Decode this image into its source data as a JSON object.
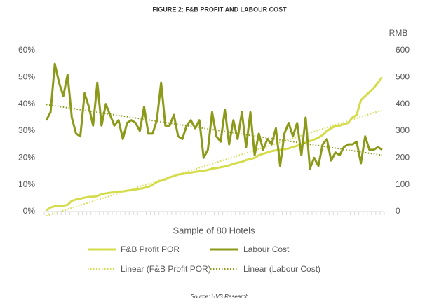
{
  "chart_data": {
    "type": "line",
    "title": "FIGURE 2: F&B PROFIT AND LABOUR COST",
    "x_label": "Sample of 80 Hotels",
    "y2_label": "RMB",
    "source": "Source: HVS Research",
    "ylim": [
      0,
      0.6
    ],
    "yticks": [
      {
        "value": 0,
        "label": "0%"
      },
      {
        "value": 0.1,
        "label": "10%"
      },
      {
        "value": 0.2,
        "label": "20%"
      },
      {
        "value": 0.3,
        "label": "30%"
      },
      {
        "value": 0.4,
        "label": "40%"
      },
      {
        "value": 0.5,
        "label": "50%"
      },
      {
        "value": 0.6,
        "label": "60%"
      }
    ],
    "y2lim": [
      0,
      600
    ],
    "y2ticks": [
      0,
      100,
      200,
      300,
      400,
      500,
      600
    ],
    "series": [
      {
        "name": "F&B Profit POR",
        "color": "#d4dc4a",
        "axis": "y2",
        "trendline": {
          "type": "linear",
          "name": "Linear (F&B Profit POR)"
        },
        "values": [
          5,
          15,
          20,
          22,
          22,
          25,
          40,
          45,
          48,
          52,
          55,
          55,
          58,
          65,
          68,
          70,
          72,
          75,
          75,
          78,
          80,
          82,
          85,
          88,
          92,
          100,
          110,
          115,
          120,
          128,
          132,
          138,
          140,
          142,
          145,
          148,
          150,
          152,
          155,
          160,
          162,
          165,
          168,
          172,
          178,
          182,
          185,
          192,
          195,
          200,
          210,
          215,
          220,
          225,
          228,
          230,
          232,
          235,
          240,
          245,
          250,
          258,
          262,
          268,
          275,
          285,
          300,
          310,
          318,
          320,
          325,
          330,
          350,
          360,
          415,
          430,
          445,
          460,
          480,
          500
        ]
      },
      {
        "name": "Labour Cost",
        "color": "#8c9a1a",
        "axis": "y",
        "trendline": {
          "type": "linear",
          "name": "Linear (Labour Cost)"
        },
        "values": [
          0.34,
          0.37,
          0.55,
          0.48,
          0.43,
          0.51,
          0.35,
          0.29,
          0.28,
          0.44,
          0.39,
          0.32,
          0.48,
          0.32,
          0.4,
          0.36,
          0.32,
          0.34,
          0.27,
          0.33,
          0.34,
          0.33,
          0.3,
          0.39,
          0.29,
          0.29,
          0.34,
          0.48,
          0.32,
          0.32,
          0.36,
          0.28,
          0.27,
          0.32,
          0.34,
          0.31,
          0.34,
          0.2,
          0.23,
          0.37,
          0.28,
          0.26,
          0.38,
          0.25,
          0.34,
          0.27,
          0.37,
          0.24,
          0.37,
          0.21,
          0.29,
          0.23,
          0.27,
          0.25,
          0.31,
          0.17,
          0.29,
          0.33,
          0.28,
          0.33,
          0.21,
          0.35,
          0.16,
          0.2,
          0.17,
          0.25,
          0.27,
          0.19,
          0.22,
          0.21,
          0.24,
          0.25,
          0.25,
          0.26,
          0.18,
          0.28,
          0.23,
          0.23,
          0.24,
          0.23
        ]
      }
    ]
  }
}
